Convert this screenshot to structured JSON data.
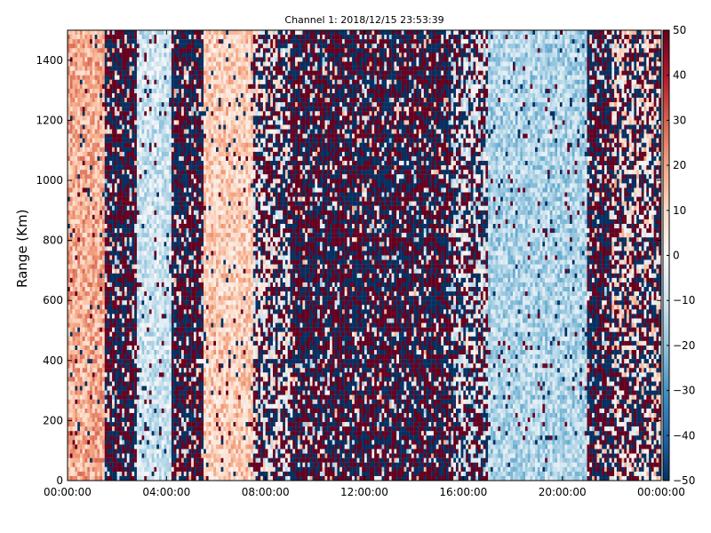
{
  "chart_data": {
    "type": "heatmap",
    "title": "Channel 1: 2018/12/15 23:53:39",
    "xlabel": "",
    "ylabel": "Range (Km)",
    "xlim": [
      "00:00:00",
      "00:00:00"
    ],
    "ylim": [
      0,
      1500
    ],
    "x_ticks": [
      "00:00:00",
      "04:00:00",
      "08:00:00",
      "12:00:00",
      "16:00:00",
      "20:00:00",
      "00:00:00"
    ],
    "y_ticks": [
      0,
      200,
      400,
      600,
      800,
      1000,
      1200,
      1400
    ],
    "colorbar": {
      "colormap": "RdBu_r",
      "min": -50,
      "max": 50,
      "ticks": [
        -50,
        -40,
        -30,
        -20,
        -10,
        0,
        10,
        20,
        30,
        40,
        50
      ],
      "colors": {
        "low": "#053061",
        "mid": "#f7f7f7",
        "high": "#67001f"
      }
    },
    "time_bands": [
      {
        "start_hour": 0.0,
        "end_hour": 1.5,
        "description": "mostly light positive",
        "mean": 18
      },
      {
        "start_hour": 1.5,
        "end_hour": 2.8,
        "description": "saturated mixed",
        "mean": 0
      },
      {
        "start_hour": 2.8,
        "end_hour": 4.2,
        "description": "light negative",
        "mean": -10
      },
      {
        "start_hour": 4.2,
        "end_hour": 5.5,
        "description": "saturated mixed",
        "mean": 0
      },
      {
        "start_hour": 5.5,
        "end_hour": 7.5,
        "description": "light positive",
        "mean": 12
      },
      {
        "start_hour": 7.5,
        "end_hour": 9.0,
        "description": "mixed",
        "mean": 0
      },
      {
        "start_hour": 9.0,
        "end_hour": 15.5,
        "description": "saturated mixed",
        "mean": 0
      },
      {
        "start_hour": 15.5,
        "end_hour": 17.0,
        "description": "mixed negative",
        "mean": -5
      },
      {
        "start_hour": 17.0,
        "end_hour": 21.0,
        "description": "light negative",
        "mean": -15
      },
      {
        "start_hour": 21.0,
        "end_hour": 22.0,
        "description": "saturated mixed",
        "mean": 0
      },
      {
        "start_hour": 22.0,
        "end_hour": 24.0,
        "description": "light / mixed",
        "mean": 5
      }
    ]
  }
}
